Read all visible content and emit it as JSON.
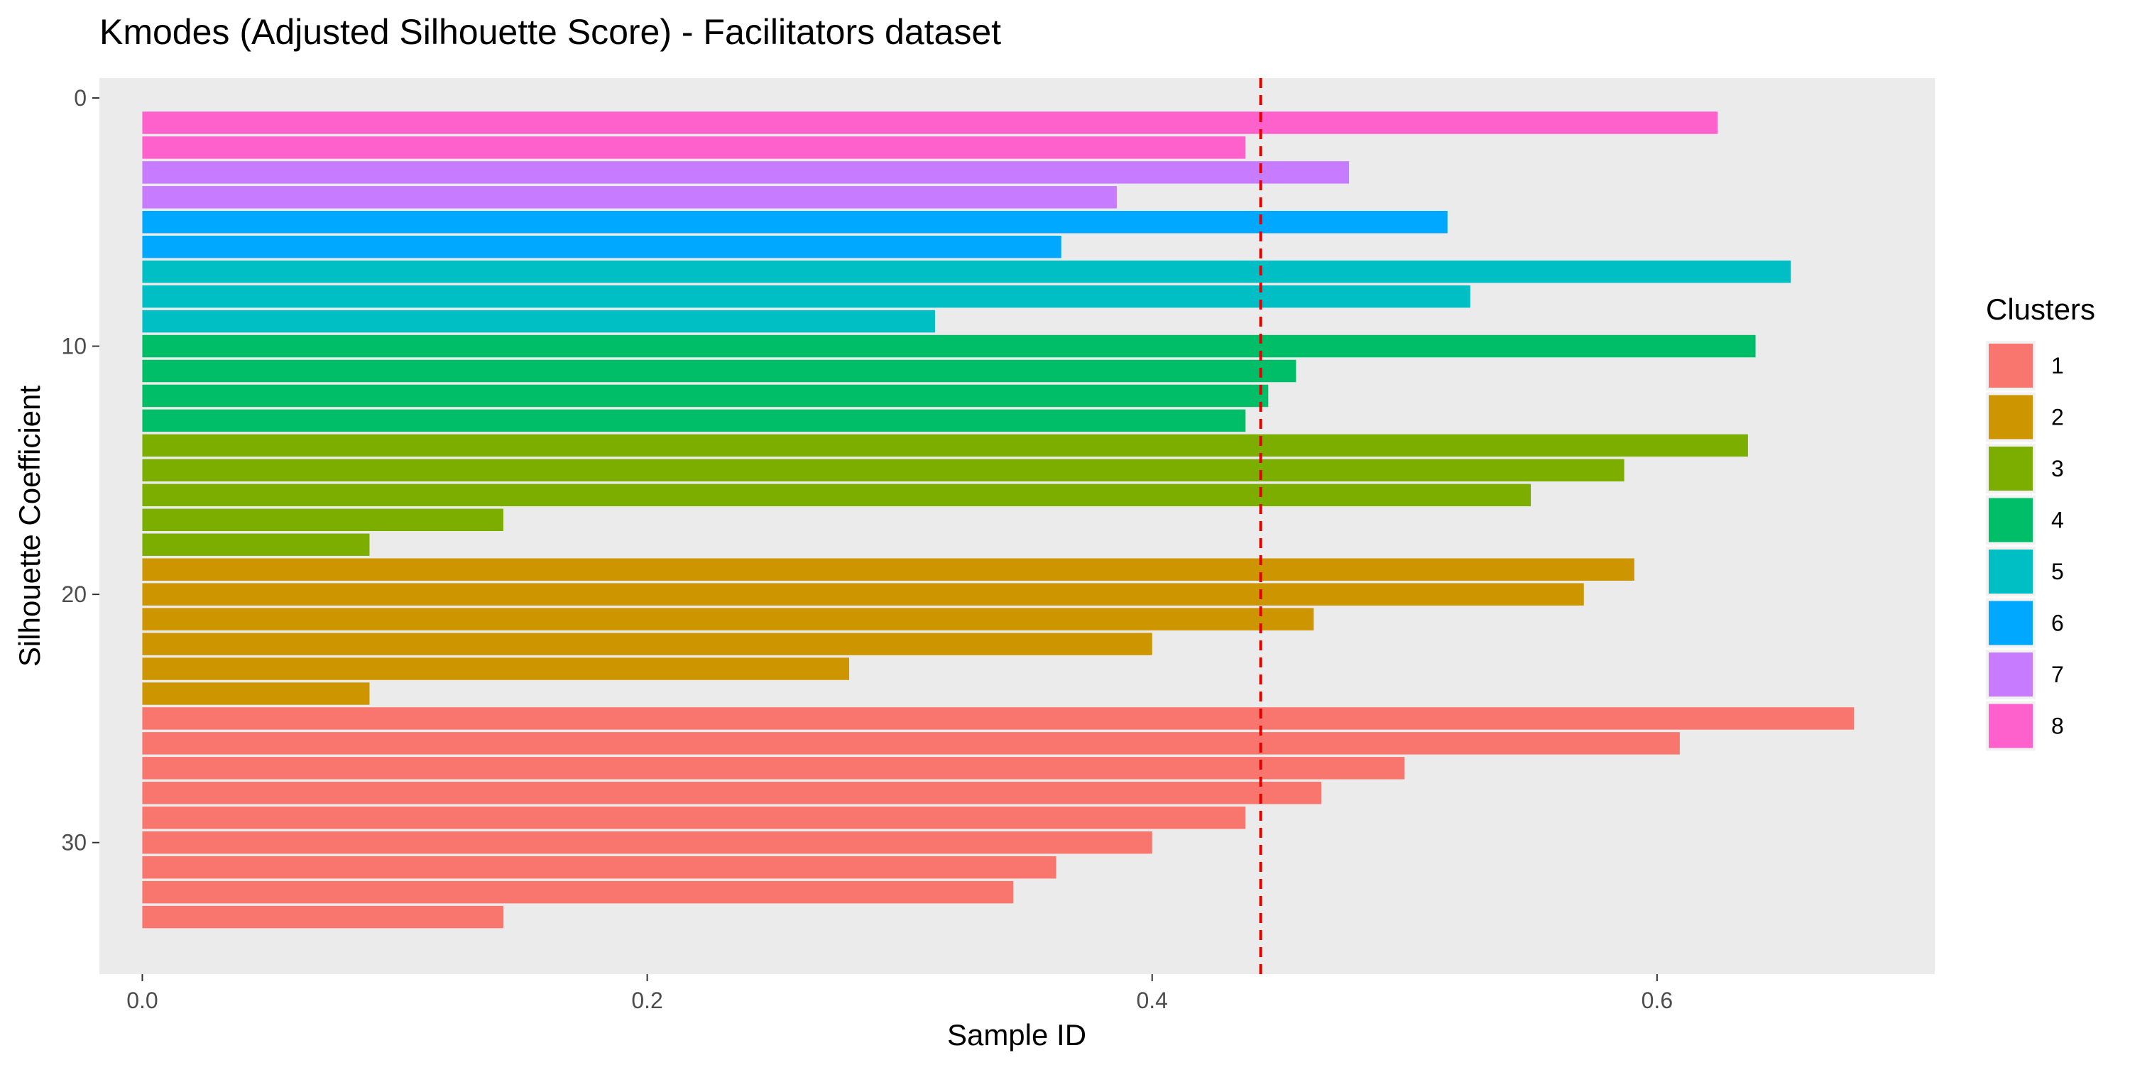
{
  "chart_data": {
    "type": "bar",
    "orientation": "horizontal",
    "title": "Kmodes (Adjusted Silhouette Score) - Facilitators dataset",
    "xlabel": "Sample ID",
    "ylabel": "Silhouette Coefficient",
    "xlim": [
      -0.017,
      0.71
    ],
    "ylim": [
      -0.8,
      35.3
    ],
    "y_reversed": true,
    "x_ticks": [
      0.0,
      0.2,
      0.4,
      0.6
    ],
    "x_tick_labels": [
      "0.0",
      "0.2",
      "0.4",
      "0.6"
    ],
    "y_ticks": [
      0,
      10,
      20,
      30
    ],
    "y_tick_labels": [
      "0",
      "10",
      "20",
      "30"
    ],
    "reference_line": {
      "x": 0.443,
      "style": "dashed",
      "color": "#e00000"
    },
    "background": "#ebebeb",
    "grid": false,
    "legend": {
      "title": "Clusters",
      "placement": "right",
      "entries": [
        {
          "label": "1",
          "color": "#F8766D"
        },
        {
          "label": "2",
          "color": "#CD9600"
        },
        {
          "label": "3",
          "color": "#7CAE00"
        },
        {
          "label": "4",
          "color": "#00BE67"
        },
        {
          "label": "5",
          "color": "#00BFC4"
        },
        {
          "label": "6",
          "color": "#00A9FF"
        },
        {
          "label": "7",
          "color": "#C77CFF"
        },
        {
          "label": "8",
          "color": "#FF61CC"
        }
      ]
    },
    "bars": [
      {
        "sample": 1,
        "cluster": "8",
        "value": 0.624
      },
      {
        "sample": 2,
        "cluster": "8",
        "value": 0.437
      },
      {
        "sample": 3,
        "cluster": "7",
        "value": 0.478
      },
      {
        "sample": 4,
        "cluster": "7",
        "value": 0.386
      },
      {
        "sample": 5,
        "cluster": "6",
        "value": 0.517
      },
      {
        "sample": 6,
        "cluster": "6",
        "value": 0.364
      },
      {
        "sample": 7,
        "cluster": "5",
        "value": 0.653
      },
      {
        "sample": 8,
        "cluster": "5",
        "value": 0.526
      },
      {
        "sample": 9,
        "cluster": "5",
        "value": 0.314
      },
      {
        "sample": 10,
        "cluster": "4",
        "value": 0.639
      },
      {
        "sample": 11,
        "cluster": "4",
        "value": 0.457
      },
      {
        "sample": 12,
        "cluster": "4",
        "value": 0.446
      },
      {
        "sample": 13,
        "cluster": "4",
        "value": 0.437
      },
      {
        "sample": 14,
        "cluster": "3",
        "value": 0.636
      },
      {
        "sample": 15,
        "cluster": "3",
        "value": 0.587
      },
      {
        "sample": 16,
        "cluster": "3",
        "value": 0.55
      },
      {
        "sample": 17,
        "cluster": "3",
        "value": 0.143
      },
      {
        "sample": 18,
        "cluster": "3",
        "value": 0.09
      },
      {
        "sample": 19,
        "cluster": "2",
        "value": 0.591
      },
      {
        "sample": 20,
        "cluster": "2",
        "value": 0.571
      },
      {
        "sample": 21,
        "cluster": "2",
        "value": 0.464
      },
      {
        "sample": 22,
        "cluster": "2",
        "value": 0.4
      },
      {
        "sample": 23,
        "cluster": "2",
        "value": 0.28
      },
      {
        "sample": 24,
        "cluster": "2",
        "value": 0.09
      },
      {
        "sample": 25,
        "cluster": "1",
        "value": 0.678
      },
      {
        "sample": 26,
        "cluster": "1",
        "value": 0.609
      },
      {
        "sample": 27,
        "cluster": "1",
        "value": 0.5
      },
      {
        "sample": 28,
        "cluster": "1",
        "value": 0.467
      },
      {
        "sample": 29,
        "cluster": "1",
        "value": 0.437
      },
      {
        "sample": 30,
        "cluster": "1",
        "value": 0.4
      },
      {
        "sample": 31,
        "cluster": "1",
        "value": 0.362
      },
      {
        "sample": 32,
        "cluster": "1",
        "value": 0.345
      },
      {
        "sample": 33,
        "cluster": "1",
        "value": 0.143
      }
    ]
  }
}
